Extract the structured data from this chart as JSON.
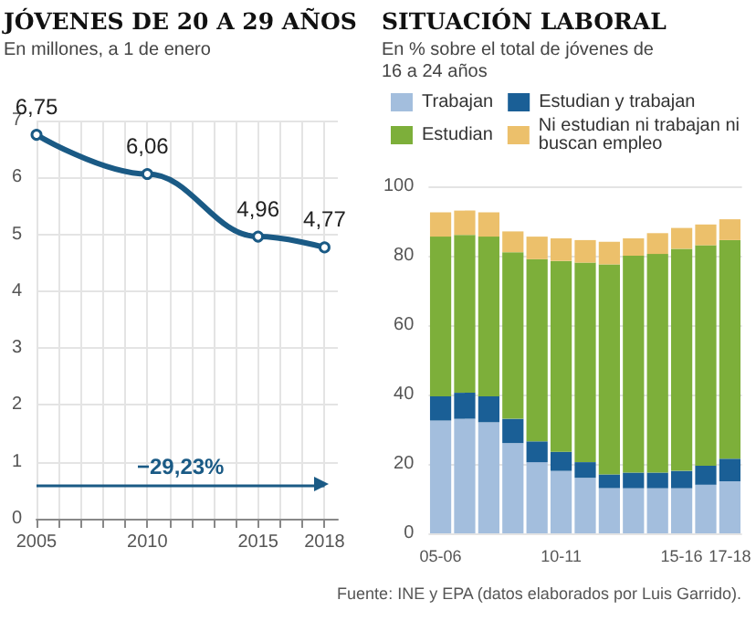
{
  "chart_data": [
    {
      "type": "line",
      "title": "JÓVENES DE 20 A 29 AÑOS",
      "subtitle": "En millones, a 1 de enero",
      "x": [
        2005,
        2010,
        2015,
        2018
      ],
      "series": [
        {
          "color": "#1a5a85",
          "values": [
            6.75,
            6.06,
            4.96,
            4.77
          ],
          "value_labels": [
            "6,75",
            "6,06",
            "4,96",
            "4,77"
          ]
        }
      ],
      "xlim": [
        2005,
        2018.6
      ],
      "xticks": [
        2005,
        2010,
        2015,
        2018
      ],
      "ylim": [
        0,
        7
      ],
      "yticks": [
        0,
        1,
        2,
        3,
        4,
        5,
        6,
        7
      ],
      "ref_lines": [
        {
          "axis": "y",
          "value": 0.6,
          "label": "−29,23%",
          "color": "#1a5a85"
        }
      ],
      "marker": "circle",
      "grid": true,
      "legend": false
    },
    {
      "type": "bar",
      "title": "SITUACIÓN LABORAL",
      "subtitle": "En % sobre el total de jóvenes de 16 a 24 años",
      "categories": [
        "05-06",
        null,
        null,
        null,
        null,
        "10-11",
        null,
        null,
        null,
        null,
        "15-16",
        null,
        "17-18"
      ],
      "stacked": true,
      "series": [
        {
          "name": "Trabajan",
          "color": "#a3bedd",
          "values": [
            32.5,
            33,
            32,
            26,
            20.5,
            18,
            16,
            13,
            13,
            13,
            13,
            14,
            15
          ]
        },
        {
          "name": "Estudian y trabajan",
          "color": "#1a5f96",
          "values": [
            7,
            7.5,
            7.5,
            7,
            6,
            5.5,
            4.5,
            4,
            4.5,
            4.5,
            5,
            5.5,
            6.5
          ]
        },
        {
          "name": "Estudian",
          "color": "#7daf3a",
          "values": [
            46,
            45.5,
            46,
            48,
            52.5,
            55,
            57.5,
            60.5,
            62.5,
            63,
            64,
            63.5,
            63
          ]
        },
        {
          "name": "Ni estudian ni trabajan ni buscan empleo",
          "color": "#ecc06b",
          "values": [
            7,
            7,
            7,
            6,
            6.5,
            6.5,
            6.5,
            6.5,
            5,
            6,
            6,
            6,
            6
          ]
        }
      ],
      "ylim": [
        0,
        100
      ],
      "yticks": [
        0,
        20,
        40,
        60,
        80,
        100
      ],
      "grid": "y",
      "legend": "top",
      "annotations": [
        "Fuente: INE y EPA (datos elaborados por Luis Garrido)."
      ]
    }
  ]
}
